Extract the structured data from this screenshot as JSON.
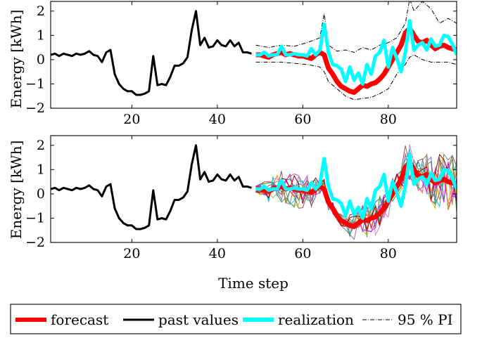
{
  "chart_data": [
    {
      "type": "line",
      "ylabel": "Energy [kWh]",
      "xlim": [
        1,
        96
      ],
      "ylim": [
        -2,
        2.4
      ],
      "xticks": [
        20,
        40,
        60,
        80
      ],
      "yticks": [
        -2,
        -1,
        0,
        1,
        2
      ],
      "grid": false,
      "series": [
        {
          "name": "past values",
          "color": "#000000",
          "x": [
            1,
            2,
            3,
            4,
            5,
            6,
            7,
            8,
            9,
            10,
            11,
            12,
            13,
            14,
            15,
            16,
            17,
            18,
            19,
            20,
            21,
            22,
            23,
            24,
            25,
            26,
            27,
            28,
            29,
            30,
            31,
            32,
            33,
            34,
            35,
            36,
            37,
            38,
            39,
            40,
            41,
            42,
            43,
            44,
            45,
            46,
            47,
            48
          ],
          "values": [
            0.2,
            0.25,
            0.15,
            0.25,
            0.2,
            0.15,
            0.25,
            0.2,
            0.25,
            0.35,
            0.2,
            0.15,
            -0.1,
            0.3,
            0.4,
            -0.6,
            -1.0,
            -1.2,
            -1.3,
            -1.3,
            -1.45,
            -1.45,
            -1.4,
            -1.3,
            0.15,
            -1.05,
            -1.0,
            -1.05,
            -0.7,
            -0.25,
            -0.25,
            -0.15,
            0.1,
            1.2,
            2.0,
            0.6,
            0.9,
            0.5,
            0.55,
            0.8,
            0.6,
            0.55,
            0.8,
            0.55,
            0.7,
            0.3,
            0.3,
            0.25
          ]
        },
        {
          "name": "forecast",
          "color": "#ff0000",
          "x": [
            49,
            50,
            51,
            52,
            53,
            54,
            55,
            56,
            57,
            58,
            59,
            60,
            61,
            62,
            63,
            64,
            65,
            66,
            67,
            68,
            69,
            70,
            71,
            72,
            73,
            74,
            75,
            76,
            77,
            78,
            79,
            80,
            81,
            82,
            83,
            84,
            85,
            86,
            87,
            88,
            89,
            90,
            91,
            92,
            93,
            94,
            95,
            96
          ],
          "values": [
            0.2,
            0.2,
            0.15,
            0.1,
            0.2,
            0.25,
            0.3,
            0.2,
            0.25,
            0.2,
            0.15,
            0.15,
            0.1,
            0.05,
            0.2,
            0.3,
            0.2,
            -0.35,
            -0.6,
            -0.9,
            -1.1,
            -1.2,
            -1.3,
            -1.35,
            -1.2,
            -1.05,
            -1.1,
            -1.0,
            -0.95,
            -0.8,
            -0.6,
            -0.3,
            0.0,
            0.3,
            0.6,
            1.1,
            1.3,
            1.0,
            0.75,
            0.7,
            0.8,
            0.6,
            0.45,
            0.55,
            0.6,
            0.5,
            0.45,
            0.4
          ]
        },
        {
          "name": "realization",
          "color": "#00ffff",
          "x": [
            49,
            50,
            51,
            52,
            53,
            54,
            55,
            56,
            57,
            58,
            59,
            60,
            61,
            62,
            63,
            64,
            65,
            66,
            67,
            68,
            69,
            70,
            71,
            72,
            73,
            74,
            75,
            76,
            77,
            78,
            79,
            80,
            81,
            82,
            83,
            84,
            85,
            86,
            87,
            88,
            89,
            90,
            91,
            92,
            93,
            94,
            95,
            96
          ],
          "values": [
            0.2,
            0.2,
            0.3,
            0.15,
            0.2,
            0.2,
            0.55,
            0.2,
            0.2,
            0.25,
            0.2,
            0.2,
            0.15,
            0.45,
            0.2,
            0.4,
            1.45,
            0.3,
            -0.2,
            -0.25,
            -0.4,
            -0.9,
            -0.3,
            -0.85,
            -0.55,
            -1.0,
            -0.2,
            -0.6,
            0.15,
            0.3,
            0.8,
            -0.3,
            0.5,
            0.05,
            -0.5,
            0.3,
            1.6,
            0.4,
            0.6,
            0.7,
            0.4,
            0.85,
            0.55,
            0.6,
            1.0,
            0.95,
            0.65,
            0.2
          ]
        },
        {
          "name": "95 % PI",
          "color": "#000000",
          "x": [
            49,
            52,
            55,
            58,
            61,
            64,
            65,
            66,
            68,
            70,
            72,
            74,
            76,
            78,
            80,
            82,
            84,
            85,
            86,
            88,
            90,
            92,
            94,
            96
          ],
          "upper": [
            0.6,
            0.5,
            0.6,
            0.55,
            0.7,
            0.9,
            1.9,
            0.6,
            0.35,
            0.4,
            0.3,
            0.5,
            0.4,
            0.6,
            0.7,
            0.9,
            1.5,
            2.5,
            2.0,
            2.4,
            2.1,
            1.5,
            1.7,
            1.5
          ],
          "lower": [
            -0.1,
            -0.1,
            -0.1,
            -0.15,
            -0.2,
            -0.3,
            -0.5,
            -0.9,
            -1.2,
            -1.5,
            -1.65,
            -1.6,
            -1.55,
            -1.4,
            -1.2,
            -0.6,
            -0.2,
            0.1,
            0.2,
            0.0,
            -0.1,
            -0.1,
            -0.1,
            -0.2
          ]
        }
      ]
    },
    {
      "type": "line",
      "xlabel": "Time step",
      "ylabel": "Energy [kWh]",
      "xlim": [
        1,
        96
      ],
      "ylim": [
        -2,
        2.4
      ],
      "xticks": [
        20,
        40,
        60,
        80
      ],
      "yticks": [
        -2,
        -1,
        0,
        1,
        2
      ],
      "grid": false,
      "scenario_colors": [
        "#1f77b4",
        "#ff7f0e",
        "#2ca02c",
        "#d62728",
        "#9467bd",
        "#8c564b",
        "#e377c2",
        "#7f7f7f",
        "#bcbd22",
        "#17becf",
        "#ff00ff",
        "#8b0000"
      ],
      "series": [
        {
          "name": "past values",
          "color": "#000000"
        },
        {
          "name": "forecast",
          "color": "#ff0000"
        },
        {
          "name": "realization",
          "color": "#00ffff"
        }
      ]
    }
  ],
  "legend": {
    "items": [
      {
        "label": "forecast",
        "color": "#ff0000",
        "style": "thick"
      },
      {
        "label": "past values",
        "color": "#000000",
        "style": "thick"
      },
      {
        "label": "realization",
        "color": "#00ffff",
        "style": "thick"
      },
      {
        "label": "95 % PI",
        "color": "#000000",
        "style": "dashdot"
      }
    ]
  }
}
